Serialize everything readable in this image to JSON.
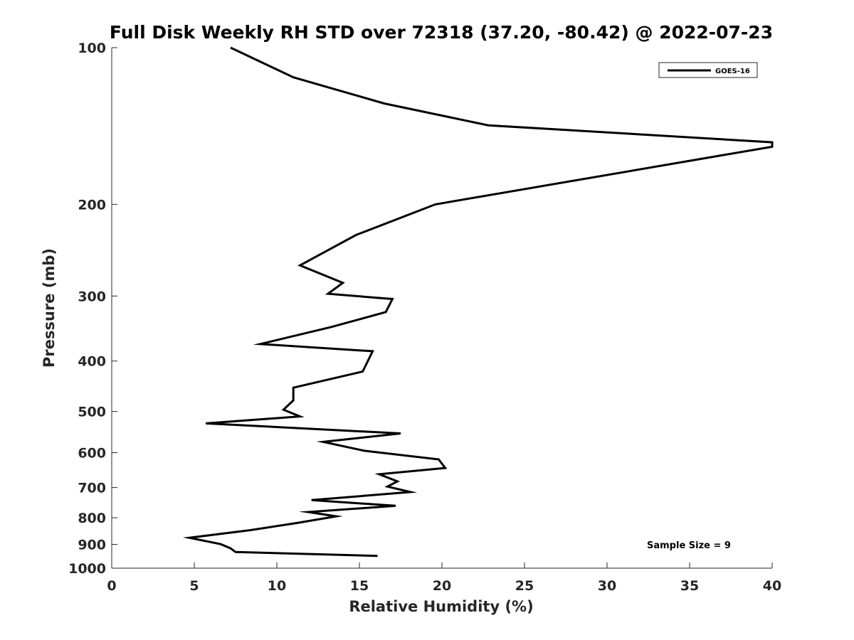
{
  "chart_data": {
    "type": "line",
    "title": "Full Disk Weekly RH STD over 72318 (37.20, -80.42) @ 2022-07-23",
    "xlabel": "Relative Humidity (%)",
    "ylabel": "Pressure (mb)",
    "xlim": [
      0,
      40
    ],
    "ylim": [
      100,
      1000
    ],
    "yscale": "log",
    "y_reversed": true,
    "x_ticks": [
      "0",
      "5",
      "10",
      "15",
      "20",
      "25",
      "30",
      "35",
      "40"
    ],
    "y_ticks": [
      "100",
      "200",
      "300",
      "400",
      "500",
      "600",
      "700",
      "800",
      "900",
      "1000"
    ],
    "grid": false,
    "legend": {
      "position": "top-right",
      "entries": [
        "GOES-16"
      ]
    },
    "annotation": "Sample Size = 9",
    "series": [
      {
        "name": "GOES-16",
        "color": "#000000",
        "x": [
          7.2,
          11.0,
          16.5,
          22.8,
          40.0,
          40.0,
          19.6,
          14.8,
          11.4,
          14.0,
          13.1,
          17.0,
          16.6,
          13.3,
          9.0,
          15.8,
          15.2,
          11.0,
          11.0,
          10.4,
          11.4,
          5.7,
          17.5,
          12.8,
          15.3,
          19.8,
          20.2,
          16.2,
          17.3,
          16.7,
          18.1,
          12.1,
          17.2,
          11.9,
          13.6,
          11.3,
          8.4,
          4.7,
          6.6,
          7.2,
          7.5,
          16.1
        ],
        "y": [
          100,
          114,
          128,
          141,
          152,
          155,
          200,
          229,
          262,
          283,
          297,
          304,
          322,
          344,
          371,
          383,
          419,
          450,
          476,
          496,
          511,
          527,
          551,
          572,
          595,
          618,
          642,
          660,
          681,
          697,
          714,
          740,
          759,
          780,
          795,
          818,
          845,
          874,
          899,
          916,
          931,
          947
        ]
      }
    ]
  }
}
